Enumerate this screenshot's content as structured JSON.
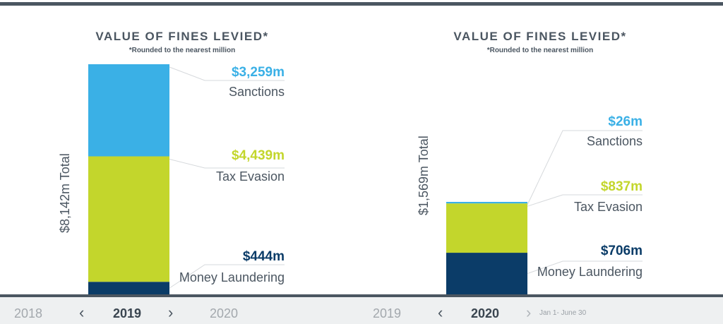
{
  "colors": {
    "sanctions": "#3ab0e6",
    "tax_evasion": "#c3d62c",
    "money_laundering": "#0b3c68"
  },
  "chart_data": [
    {
      "type": "bar",
      "stacked": true,
      "title": "VALUE OF FINES LEVIED*",
      "subtitle": "*Rounded to the nearest million",
      "total_label": "$8,142m Total",
      "categories": [
        "2019"
      ],
      "series": [
        {
          "name": "Money Laundering",
          "values": [
            444
          ],
          "label": "$444m"
        },
        {
          "name": "Tax Evasion",
          "values": [
            4439
          ],
          "label": "$4,439m"
        },
        {
          "name": "Sanctions",
          "values": [
            3259
          ],
          "label": "$3,259m"
        }
      ]
    },
    {
      "type": "bar",
      "stacked": true,
      "title": "VALUE OF FINES LEVIED*",
      "subtitle": "*Rounded to the nearest million",
      "total_label": "$1,569m Total",
      "categories": [
        "2020"
      ],
      "series": [
        {
          "name": "Money Laundering",
          "values": [
            706
          ],
          "label": "$706m"
        },
        {
          "name": "Tax Evasion",
          "values": [
            837
          ],
          "label": "$837m"
        },
        {
          "name": "Sanctions",
          "values": [
            26
          ],
          "label": "$26m"
        }
      ]
    }
  ],
  "nav": [
    {
      "prev": "2018",
      "current": "2019",
      "next": "2020"
    },
    {
      "prev": "2019",
      "current": "2020",
      "note": "Jan 1- June 30"
    }
  ]
}
